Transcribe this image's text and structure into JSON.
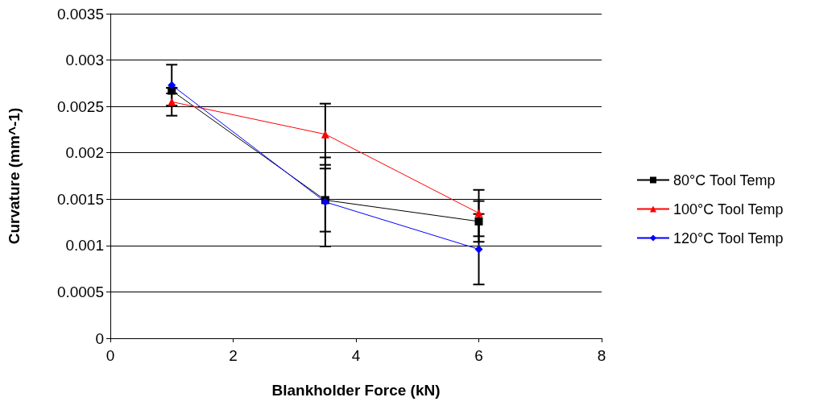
{
  "chart_data": {
    "type": "line",
    "xlabel": "Blankholder Force (kN)",
    "ylabel": "Curvature (mm^-1)",
    "x": [
      1,
      3.5,
      6
    ],
    "series": [
      {
        "name": "80°C Tool Temp",
        "color": "#000000",
        "marker": "square",
        "values": [
          0.00267,
          0.00149,
          0.00126
        ],
        "errors": [
          3e-05,
          0.00034,
          0.00022
        ]
      },
      {
        "name": "100°C Tool Temp",
        "color": "#ff0000",
        "marker": "triangle",
        "values": [
          0.00255,
          0.0022,
          0.00135
        ],
        "errors": [
          0.00015,
          0.00033,
          0.00025
        ]
      },
      {
        "name": "120°C Tool Temp",
        "color": "#0000ff",
        "marker": "diamond",
        "values": [
          0.00273,
          0.00147,
          0.00096
        ],
        "errors": [
          0.00022,
          0.00048,
          0.00038
        ]
      }
    ],
    "xlim": [
      0,
      8
    ],
    "xticks": [
      0,
      2,
      4,
      6,
      8
    ],
    "ylim": [
      0,
      0.0035
    ],
    "yticks": [
      0,
      0.0005,
      0.001,
      0.0015,
      0.002,
      0.0025,
      0.003,
      0.0035
    ],
    "grid": "y",
    "legend": "right",
    "line_style": "solid"
  }
}
